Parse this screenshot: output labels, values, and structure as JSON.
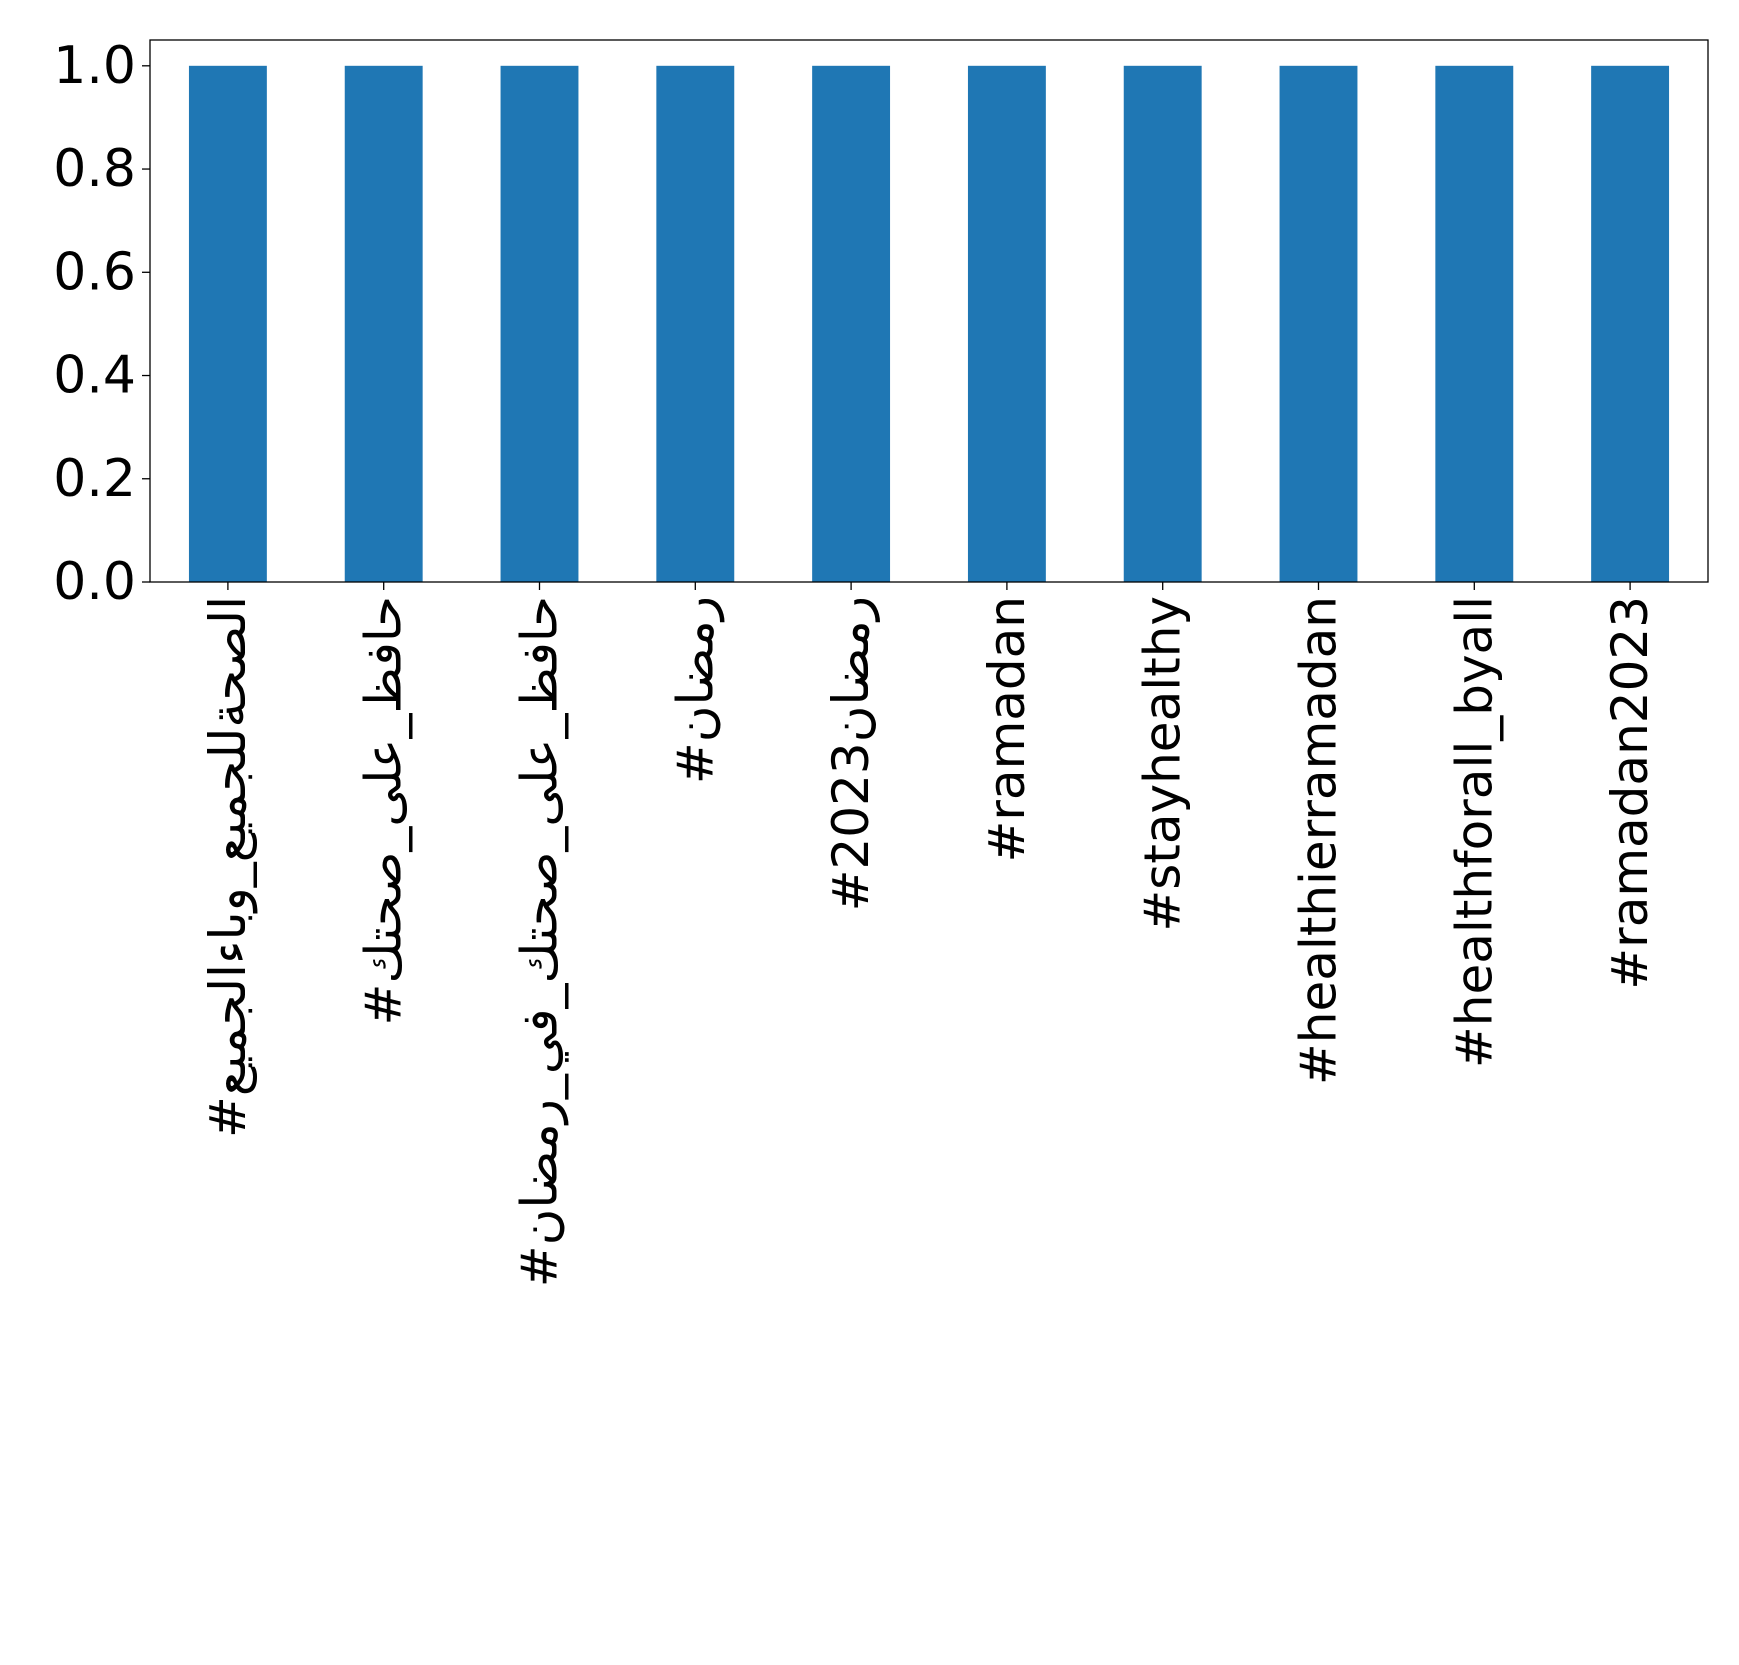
{
  "chart_data": {
    "type": "bar",
    "categories": [
      "#الصحةللجميع_وباءالجميع",
      "#حافظ_على_صحتك",
      "#حافظ_على_صحتك_في_رمضان",
      "#رمضان",
      "#رمضان2023",
      "#ramadan",
      "#stayhealthy",
      "#healthierramadan",
      "#healthforall_byall",
      "#ramadan2023"
    ],
    "values": [
      1.0,
      1.0,
      1.0,
      1.0,
      1.0,
      1.0,
      1.0,
      1.0,
      1.0,
      1.0
    ],
    "ylim": [
      0,
      1.05
    ],
    "yticks": [
      0.0,
      0.2,
      0.4,
      0.6,
      0.8,
      1.0
    ],
    "ytick_labels": [
      "0.0",
      "0.2",
      "0.4",
      "0.6",
      "0.8",
      "1.0"
    ],
    "grid": false,
    "legend": "none",
    "bar_color": "#1f77b4"
  }
}
